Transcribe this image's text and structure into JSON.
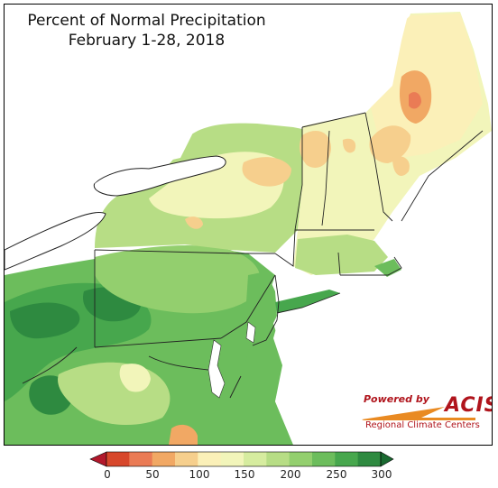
{
  "title": {
    "line1": "Percent of Normal Precipitation",
    "line2": "February 1-28, 2018"
  },
  "logo": {
    "powered_by": "Powered by",
    "name": "ACIS",
    "subtitle": "Regional Climate Centers"
  },
  "legend": {
    "ticks": [
      "0",
      "50",
      "100",
      "150",
      "200",
      "250",
      "300"
    ],
    "bins": [
      {
        "range": "0-25",
        "color": "#d7472b"
      },
      {
        "range": "25-50",
        "color": "#ea7b55"
      },
      {
        "range": "50-75",
        "color": "#f1a864"
      },
      {
        "range": "75-100",
        "color": "#f6cf8d"
      },
      {
        "range": "100-125",
        "color": "#fbf0b8"
      },
      {
        "range": "125-150",
        "color": "#f2f5ba"
      },
      {
        "range": "150-175",
        "color": "#d6ec9f"
      },
      {
        "range": "175-200",
        "color": "#b7dd85"
      },
      {
        "range": "200-225",
        "color": "#93cf6e"
      },
      {
        "range": "225-250",
        "color": "#6cbd5c"
      },
      {
        "range": "250-275",
        "color": "#47a74d"
      },
      {
        "range": "275-300",
        "color": "#2e8a40"
      }
    ],
    "under_color": "#b2182b",
    "over_color": "#1a6a31"
  }
}
